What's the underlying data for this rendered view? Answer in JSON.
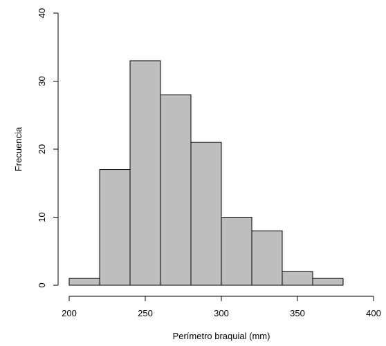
{
  "colors": {
    "bar_fill": "#bebebe",
    "bar_stroke": "#000000",
    "axis": "#000000",
    "background": "#ffffff"
  },
  "chart_data": {
    "type": "bar",
    "subtype": "histogram",
    "title": "",
    "xlabel": "Perímetro braquial (mm)",
    "ylabel": "Frecuencia",
    "bins": [
      {
        "from": 200,
        "to": 220,
        "count": 1
      },
      {
        "from": 220,
        "to": 240,
        "count": 17
      },
      {
        "from": 240,
        "to": 260,
        "count": 33
      },
      {
        "from": 260,
        "to": 280,
        "count": 28
      },
      {
        "from": 280,
        "to": 300,
        "count": 21
      },
      {
        "from": 300,
        "to": 320,
        "count": 10
      },
      {
        "from": 320,
        "to": 340,
        "count": 8
      },
      {
        "from": 340,
        "to": 360,
        "count": 2
      },
      {
        "from": 360,
        "to": 380,
        "count": 1
      }
    ],
    "xlim": [
      200,
      400
    ],
    "ylim": [
      0,
      40
    ],
    "xticks": [
      200,
      250,
      300,
      350,
      400
    ],
    "yticks": [
      0,
      10,
      20,
      30,
      40
    ],
    "xtick_labels": [
      "200",
      "250",
      "300",
      "350",
      "400"
    ],
    "ytick_labels": [
      "0",
      "10",
      "20",
      "30",
      "40"
    ],
    "grid": false,
    "legend": "none"
  }
}
